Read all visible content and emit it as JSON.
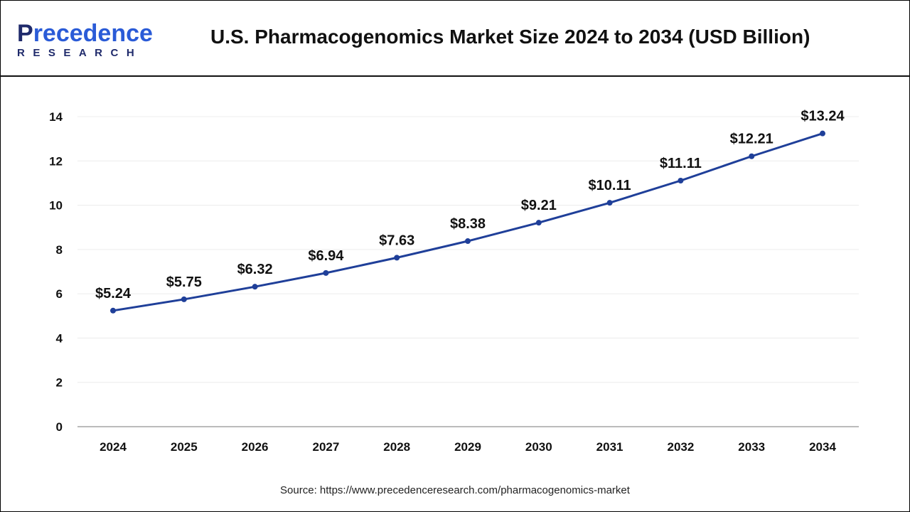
{
  "logo": {
    "text": "Precedence",
    "first_letter": "P",
    "rest": "recedence",
    "sub": "RESEARCH"
  },
  "title": "U.S. Pharmacogenomics Market Size 2024 to 2034 (USD Billion)",
  "source": "Source: https://www.precedenceresearch.com/pharmacogenomics-market",
  "chart_data": {
    "type": "line",
    "title": "U.S. Pharmacogenomics Market Size 2024 to 2034 (USD Billion)",
    "categories": [
      "2024",
      "2025",
      "2026",
      "2027",
      "2028",
      "2029",
      "2030",
      "2031",
      "2032",
      "2033",
      "2034"
    ],
    "values": [
      5.24,
      5.75,
      6.32,
      6.94,
      7.63,
      8.38,
      9.21,
      10.11,
      11.11,
      12.21,
      13.24
    ],
    "data_labels": [
      "$5.24",
      "$5.75",
      "$6.32",
      "$6.94",
      "$7.63",
      "$8.38",
      "$9.21",
      "$10.11",
      "$11.11",
      "$12.21",
      "$13.24"
    ],
    "yticks": [
      0,
      2,
      4,
      6,
      8,
      10,
      12,
      14
    ],
    "ylim": [
      0,
      14
    ],
    "grid": true,
    "line_color": "#1f3f99"
  }
}
